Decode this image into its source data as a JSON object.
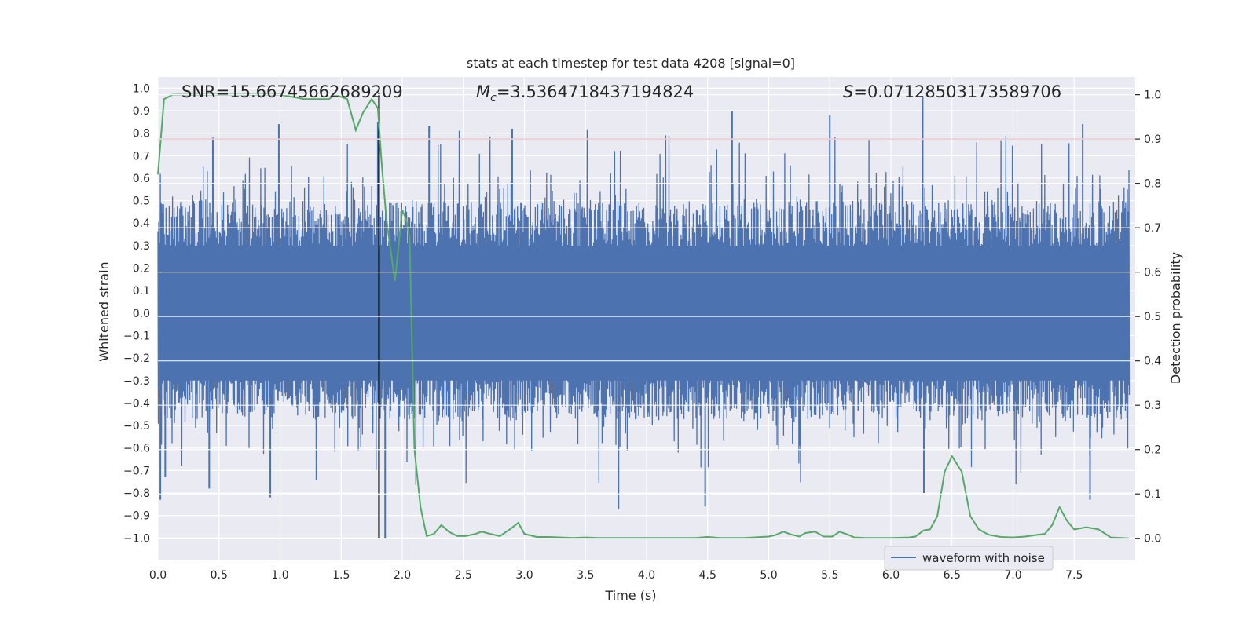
{
  "chart_data": {
    "type": "line",
    "title": "stats at each timestep for test data 4208 [signal=0]",
    "xlabel": "Time (s)",
    "ylabel_left": "Whitened strain",
    "ylabel_right": "Detection probability",
    "xlim": [
      0.0,
      8.0
    ],
    "ylim_left": [
      -1.1,
      1.05
    ],
    "ylim_right": [
      -0.05,
      1.04
    ],
    "x_ticks": [
      "0.0",
      "0.5",
      "1.0",
      "1.5",
      "2.0",
      "2.5",
      "3.0",
      "3.5",
      "4.0",
      "4.5",
      "5.0",
      "5.5",
      "6.0",
      "6.5",
      "7.0",
      "7.5"
    ],
    "x_tick_values": [
      0.0,
      0.5,
      1.0,
      1.5,
      2.0,
      2.5,
      3.0,
      3.5,
      4.0,
      4.5,
      5.0,
      5.5,
      6.0,
      6.5,
      7.0,
      7.5
    ],
    "y_left_ticks": [
      "1.0",
      "0.9",
      "0.8",
      "0.7",
      "0.6",
      "0.5",
      "0.4",
      "0.3",
      "0.2",
      "0.1",
      "0.0",
      "−0.1",
      "−0.2",
      "−0.3",
      "−0.4",
      "−0.5",
      "−0.6",
      "−0.7",
      "−0.8",
      "−0.9",
      "−1.0"
    ],
    "y_left_tick_values": [
      1.0,
      0.9,
      0.8,
      0.7,
      0.6,
      0.5,
      0.4,
      0.3,
      0.2,
      0.1,
      0.0,
      -0.1,
      -0.2,
      -0.3,
      -0.4,
      -0.5,
      -0.6,
      -0.7,
      -0.8,
      -0.9,
      -1.0
    ],
    "y_right_ticks": [
      "1.0",
      "0.9",
      "0.8",
      "0.7",
      "0.6",
      "0.5",
      "0.4",
      "0.3",
      "0.2",
      "0.1",
      "0.0"
    ],
    "y_right_tick_values": [
      1.0,
      0.9,
      0.8,
      0.7,
      0.6,
      0.5,
      0.4,
      0.3,
      0.2,
      0.1,
      0.0
    ],
    "annotations": {
      "snr": "SNR=15.66745662689209",
      "mc_symbol": "M",
      "mc_sub": "c",
      "mc_value": "=3.5364718437194824",
      "s_symbol": "S",
      "s_value": "=0.07128503173589706"
    },
    "threshold": {
      "value": 0.9,
      "color": "#c44e52"
    },
    "marker_line": {
      "x": 1.81,
      "color": "#000000"
    },
    "series": [
      {
        "name": "waveform with noise",
        "axis": "left",
        "color": "#4c72b0",
        "kind": "dense noise",
        "envelope_typical": [
          -0.45,
          0.5
        ],
        "peaks": [
          {
            "x": 0.02,
            "y": -0.83
          },
          {
            "x": 0.06,
            "y": -0.73
          },
          {
            "x": 0.45,
            "y": 0.78
          },
          {
            "x": 0.42,
            "y": -0.78
          },
          {
            "x": 0.92,
            "y": -0.82
          },
          {
            "x": 0.99,
            "y": 0.84
          },
          {
            "x": 1.8,
            "y": 0.85
          },
          {
            "x": 1.86,
            "y": -1.0
          },
          {
            "x": 2.22,
            "y": 0.83
          },
          {
            "x": 2.9,
            "y": 0.82
          },
          {
            "x": 3.77,
            "y": -0.87
          },
          {
            "x": 4.48,
            "y": -0.86
          },
          {
            "x": 4.7,
            "y": 0.9
          },
          {
            "x": 5.5,
            "y": 0.88
          },
          {
            "x": 6.26,
            "y": 0.96
          },
          {
            "x": 6.27,
            "y": -0.8
          },
          {
            "x": 7.57,
            "y": 0.84
          },
          {
            "x": 7.63,
            "y": -0.83
          }
        ]
      },
      {
        "name": "detection probability",
        "axis": "right",
        "color": "#55a868",
        "x": [
          0.0,
          0.05,
          0.12,
          0.3,
          0.5,
          0.8,
          1.0,
          1.1,
          1.2,
          1.3,
          1.4,
          1.45,
          1.55,
          1.62,
          1.68,
          1.75,
          1.8,
          1.83,
          1.87,
          1.91,
          1.94,
          1.97,
          2.0,
          2.03,
          2.06,
          2.1,
          2.15,
          2.2,
          2.26,
          2.32,
          2.38,
          2.45,
          2.52,
          2.6,
          2.65,
          2.72,
          2.8,
          2.88,
          2.95,
          3.0,
          3.1,
          3.2,
          3.4,
          3.5,
          3.6,
          3.8,
          4.0,
          4.2,
          4.4,
          4.5,
          4.6,
          4.8,
          5.0,
          5.05,
          5.12,
          5.18,
          5.25,
          5.3,
          5.38,
          5.45,
          5.52,
          5.58,
          5.65,
          5.7,
          5.8,
          6.0,
          6.15,
          6.2,
          6.27,
          6.32,
          6.38,
          6.44,
          6.5,
          6.58,
          6.65,
          6.72,
          6.8,
          6.9,
          7.0,
          7.1,
          7.2,
          7.26,
          7.32,
          7.38,
          7.44,
          7.5,
          7.6,
          7.7,
          7.8,
          7.95
        ],
        "y": [
          0.82,
          0.99,
          1.0,
          1.0,
          1.0,
          1.0,
          1.0,
          0.995,
          0.99,
          0.99,
          0.99,
          1.0,
          0.99,
          0.92,
          0.96,
          0.99,
          0.97,
          0.85,
          0.72,
          0.64,
          0.58,
          0.66,
          0.74,
          0.72,
          0.68,
          0.2,
          0.07,
          0.005,
          0.01,
          0.03,
          0.015,
          0.005,
          0.005,
          0.01,
          0.015,
          0.01,
          0.005,
          0.02,
          0.035,
          0.01,
          0.003,
          0.003,
          0.001,
          0.002,
          0.001,
          0.001,
          0.001,
          0.001,
          0.001,
          0.003,
          0.001,
          0.001,
          0.004,
          0.007,
          0.015,
          0.009,
          0.004,
          0.012,
          0.015,
          0.004,
          0.004,
          0.015,
          0.008,
          0.002,
          0.001,
          0.001,
          0.002,
          0.004,
          0.018,
          0.02,
          0.05,
          0.15,
          0.185,
          0.15,
          0.05,
          0.02,
          0.008,
          0.003,
          0.002,
          0.004,
          0.008,
          0.01,
          0.03,
          0.07,
          0.04,
          0.02,
          0.025,
          0.02,
          0.002,
          0.0
        ]
      }
    ]
  }
}
